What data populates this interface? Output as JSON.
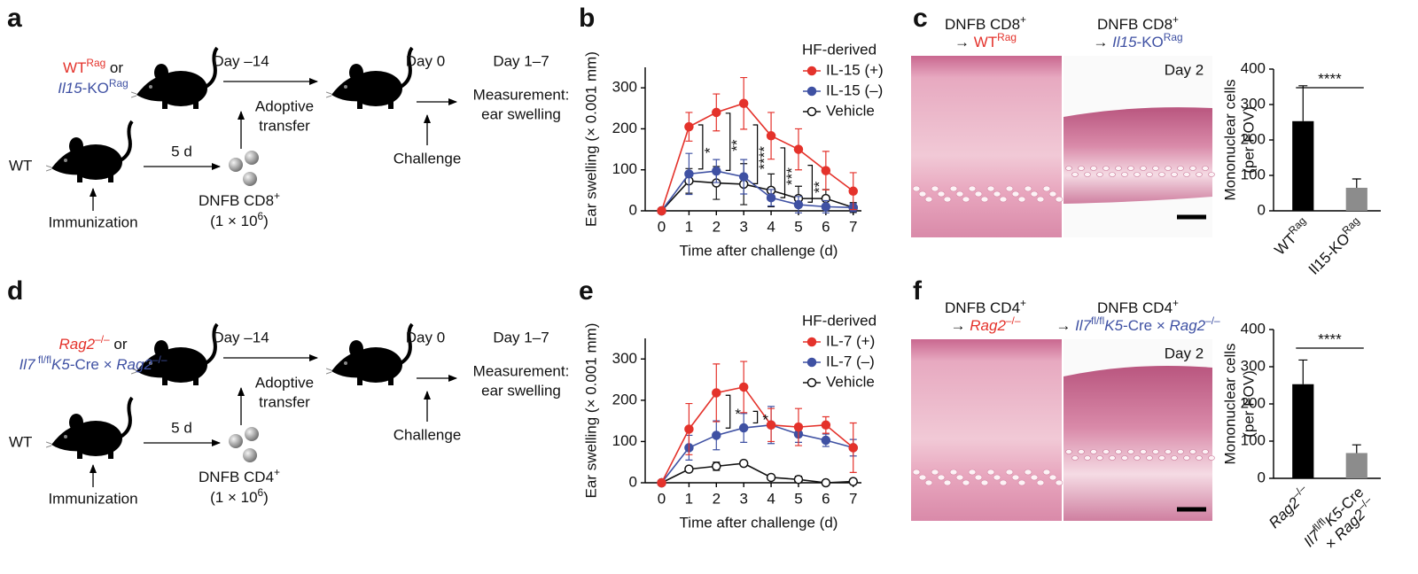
{
  "panel_labels": [
    "a",
    "b",
    "c",
    "d",
    "e",
    "f"
  ],
  "schematic_a": {
    "strain_1": [
      {
        "text": "WT",
        "color": "#e4322b"
      },
      {
        "text": "Rag",
        "style": "sup",
        "color": "#e4322b"
      },
      {
        "text": " or"
      }
    ],
    "strain_2": [
      {
        "text": "Il15",
        "style": "italic",
        "color": "#3f51a3"
      },
      {
        "text": "-KO",
        "color": "#3f51a3"
      },
      {
        "text": "Rag",
        "style": "sup",
        "color": "#3f51a3"
      }
    ],
    "day_a": "Day –14",
    "day_b": "Day 0",
    "day_c": "Day 1–7",
    "measurement": [
      "Measurement:",
      "ear swelling"
    ],
    "transfer": [
      "Adoptive",
      "transfer"
    ],
    "challenge": "Challenge",
    "donor": "WT",
    "interval": "5 d",
    "immunization": "Immunization",
    "cells": [
      {
        "text": "DNFB CD8"
      },
      {
        "text": "+",
        "style": "sup"
      }
    ],
    "dose": [
      {
        "text": "(1 × 10"
      },
      {
        "text": "6",
        "style": "sup"
      },
      {
        "text": ")"
      }
    ]
  },
  "schematic_d": {
    "strain_1": [
      {
        "text": "Rag2",
        "style": "italic",
        "color": "#e4322b"
      },
      {
        "text": "–/–",
        "style": "sup",
        "color": "#e4322b"
      },
      {
        "text": " or"
      }
    ],
    "strain_2": [
      {
        "text": "Il7",
        "style": "italic",
        "color": "#3f51a3"
      },
      {
        "text": " fl/fl",
        "style": "sup",
        "color": "#3f51a3"
      },
      {
        "text": "K5",
        "style": "italic",
        "color": "#3f51a3"
      },
      {
        "text": "-Cre × ",
        "color": "#3f51a3"
      },
      {
        "text": "Rag2",
        "style": "italic",
        "color": "#3f51a3"
      },
      {
        "text": "–/–",
        "style": "sup",
        "color": "#3f51a3"
      }
    ],
    "day_a": "Day –14",
    "day_b": "Day 0",
    "day_c": "Day 1–7",
    "measurement": [
      "Measurement:",
      "ear swelling"
    ],
    "transfer": [
      "Adoptive",
      "transfer"
    ],
    "challenge": "Challenge",
    "donor": "WT",
    "interval": "5 d",
    "immunization": "Immunization",
    "cells": [
      {
        "text": "DNFB CD4"
      },
      {
        "text": "+",
        "style": "sup"
      }
    ],
    "dose": [
      {
        "text": "(1 × 10"
      },
      {
        "text": "6",
        "style": "sup"
      },
      {
        "text": ")"
      }
    ]
  },
  "histology_c": {
    "left": [
      [
        {
          "text": "DNFB CD8"
        },
        {
          "text": "+",
          "style": "sup"
        }
      ],
      [
        {
          "text": "→ "
        },
        {
          "text": "WT",
          "color": "#e4322b"
        },
        {
          "text": "Rag",
          "style": "sup",
          "color": "#e4322b"
        }
      ]
    ],
    "right": [
      [
        {
          "text": "DNFB CD8"
        },
        {
          "text": "+",
          "style": "sup"
        }
      ],
      [
        {
          "text": "→ "
        },
        {
          "text": "Il15",
          "style": "italic",
          "color": "#3f51a3"
        },
        {
          "text": "-KO",
          "color": "#3f51a3"
        },
        {
          "text": "Rag",
          "style": "sup",
          "color": "#3f51a3"
        }
      ]
    ],
    "timepoint": "Day 2"
  },
  "histology_f": {
    "left": [
      [
        {
          "text": "DNFB CD4"
        },
        {
          "text": "+",
          "style": "sup"
        }
      ],
      [
        {
          "text": "→ "
        },
        {
          "text": "Rag2",
          "style": "italic",
          "color": "#e4322b"
        },
        {
          "text": "–/–",
          "style": "sup",
          "color": "#e4322b"
        }
      ]
    ],
    "right": [
      [
        {
          "text": "DNFB CD4"
        },
        {
          "text": "+",
          "style": "sup"
        }
      ],
      [
        {
          "text": "→ "
        },
        {
          "text": "Il7",
          "style": "italic",
          "color": "#3f51a3"
        },
        {
          "text": "fl/fl",
          "style": "sup",
          "color": "#3f51a3"
        },
        {
          "text": "K5",
          "style": "italic",
          "color": "#3f51a3"
        },
        {
          "text": "-Cre × ",
          "color": "#3f51a3"
        },
        {
          "text": "Rag2",
          "style": "italic",
          "color": "#3f51a3"
        },
        {
          "text": "–/–",
          "style": "sup",
          "color": "#3f51a3"
        }
      ]
    ],
    "timepoint": "Day 2"
  },
  "chart_data": [
    {
      "type": "line",
      "xlabel": "Time after challenge (d)",
      "ylabel": "Ear swelling (× 0.001 mm)",
      "x": [
        0,
        1,
        2,
        3,
        4,
        5,
        6,
        7
      ],
      "xlim": [
        -0.6,
        7.3
      ],
      "xticks": [
        0,
        1,
        2,
        3,
        4,
        5,
        6,
        7
      ],
      "ylim": [
        0,
        350
      ],
      "yticks": [
        0,
        100,
        200,
        300
      ],
      "legend_title": "HF-derived",
      "legend": "upper right",
      "series": [
        {
          "name": "IL-15 (+)",
          "color": "#e4322b",
          "marker": "filled",
          "values": [
            0,
            205,
            240,
            262,
            183,
            150,
            98,
            48
          ],
          "errors": [
            0,
            35,
            45,
            63,
            57,
            50,
            47,
            45
          ]
        },
        {
          "name": "IL-15 (–)",
          "color": "#3f51a3",
          "marker": "filled",
          "values": [
            0,
            90,
            97,
            83,
            32,
            15,
            10,
            8
          ],
          "errors": [
            0,
            50,
            28,
            42,
            20,
            20,
            15,
            10
          ]
        },
        {
          "name": "Vehicle",
          "color": "#111111",
          "marker": "open",
          "values": [
            0,
            73,
            68,
            65,
            50,
            30,
            30,
            8
          ],
          "errors": [
            0,
            30,
            40,
            50,
            40,
            30,
            22,
            12
          ]
        }
      ],
      "annotation_orientation": "vertical",
      "annotations": [
        {
          "text": "*",
          "x": 1.5
        },
        {
          "text": "**",
          "x": 2.5
        },
        {
          "text": "****",
          "x": 3.5
        },
        {
          "text": "***",
          "x": 4.5
        },
        {
          "text": "**",
          "x": 5.5
        }
      ]
    },
    {
      "type": "bar",
      "ylabel": [
        "Mononuclear cells",
        "(per FOV)"
      ],
      "categories": [
        [
          [
            {
              "text": "WT"
            },
            {
              "text": "Rag",
              "style": "sup"
            }
          ]
        ],
        [
          [
            {
              "text": "Il15-KO"
            },
            {
              "text": "Rag",
              "style": "sup"
            }
          ]
        ]
      ],
      "values": [
        253,
        65
      ],
      "errors": [
        100,
        25
      ],
      "colors": [
        "#000000",
        "#8c8c8c"
      ],
      "ylim": [
        0,
        400
      ],
      "yticks": [
        0,
        100,
        200,
        300,
        400
      ],
      "significance": "****"
    },
    {
      "type": "line",
      "xlabel": "Time after challenge (d)",
      "ylabel": "Ear swelling (× 0.001 mm)",
      "x": [
        0,
        1,
        2,
        3,
        4,
        5,
        6,
        7
      ],
      "xlim": [
        -0.6,
        7.3
      ],
      "xticks": [
        0,
        1,
        2,
        3,
        4,
        5,
        6,
        7
      ],
      "ylim": [
        0,
        350
      ],
      "yticks": [
        0,
        100,
        200,
        300
      ],
      "legend_title": "HF-derived",
      "legend": "upper right",
      "series": [
        {
          "name": "IL-7 (+)",
          "color": "#e4322b",
          "marker": "filled",
          "values": [
            0,
            130,
            218,
            232,
            140,
            135,
            140,
            85
          ],
          "errors": [
            0,
            62,
            70,
            62,
            40,
            45,
            20,
            60
          ]
        },
        {
          "name": "IL-7 (–)",
          "color": "#3f51a3",
          "marker": "filled",
          "values": [
            0,
            85,
            115,
            133,
            140,
            118,
            103,
            85
          ],
          "errors": [
            0,
            30,
            35,
            35,
            45,
            20,
            15,
            20
          ]
        },
        {
          "name": "Vehicle",
          "color": "#111111",
          "marker": "open",
          "values": [
            0,
            33,
            40,
            47,
            13,
            8,
            0,
            3
          ],
          "errors": [
            0,
            5,
            10,
            5,
            3,
            8,
            3,
            3
          ]
        }
      ],
      "annotation_orientation": "horizontal",
      "annotations": [
        {
          "text": "*",
          "x": 2.5
        },
        {
          "text": "*",
          "x": 3.5
        }
      ]
    },
    {
      "type": "bar",
      "ylabel": [
        "Mononuclear cells",
        "(per FOV)"
      ],
      "categories": [
        [
          [
            {
              "text": "Rag2",
              "style": "italic"
            },
            {
              "text": "–/–",
              "style": "sup"
            }
          ]
        ],
        [
          [
            {
              "text": "Il7",
              "style": "italic"
            },
            {
              "text": "fl/fl",
              "style": "sup"
            },
            {
              "text": "K5",
              "style": "italic"
            },
            {
              "text": "-Cre"
            }
          ],
          [
            {
              "text": "× "
            },
            {
              "text": "Rag2",
              "style": "italic"
            },
            {
              "text": "–/–",
              "style": "sup"
            }
          ]
        ]
      ],
      "values": [
        253,
        68
      ],
      "errors": [
        65,
        22
      ],
      "colors": [
        "#000000",
        "#8c8c8c"
      ],
      "ylim": [
        0,
        400
      ],
      "yticks": [
        0,
        100,
        200,
        300,
        400
      ],
      "significance": "****"
    }
  ]
}
